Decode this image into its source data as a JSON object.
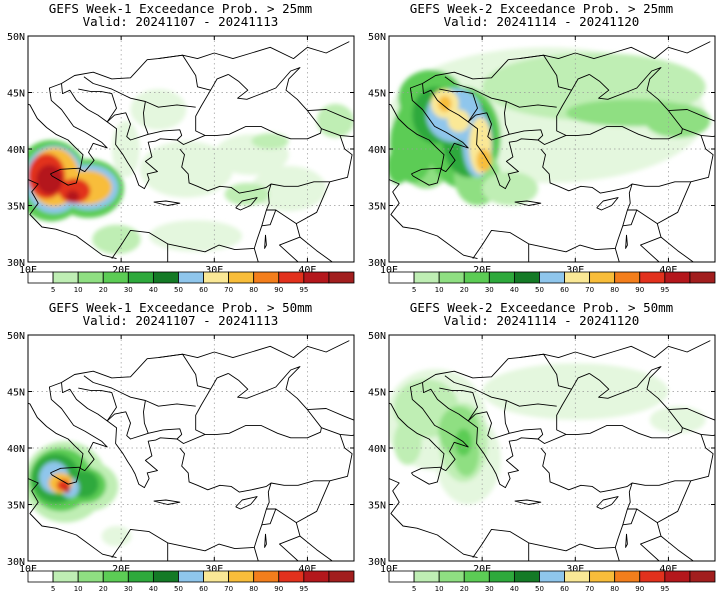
{
  "colors": {
    "land": "#ffffff",
    "coast": "#000000",
    "grid": "#9a9a9a",
    "levels": [
      "#ffffff",
      "#e4f7de",
      "#bfeeb4",
      "#8fdf82",
      "#5ccc55",
      "#2ea93c",
      "#147a26",
      "#8fc6ec",
      "#fae896",
      "#f8bd3a",
      "#f37e1c",
      "#e2311d",
      "#b4171c",
      "#a21e1e"
    ]
  },
  "colorbar": {
    "labels": [
      "5",
      "10",
      "20",
      "30",
      "40",
      "50",
      "60",
      "70",
      "80",
      "90",
      "95"
    ]
  },
  "axes": {
    "lon_labels": [
      "10E",
      "20E",
      "30E",
      "40E"
    ],
    "lat_labels": [
      "50N",
      "45N",
      "40N",
      "35N",
      "30N"
    ],
    "lon_range": [
      10,
      45
    ],
    "lat_range": [
      30,
      50
    ]
  },
  "panels": [
    {
      "id": "w1-25",
      "title_line1": "GEFS Week-1 Exceedance Prob. > 25mm",
      "title_line2": "Valid: 20241107 - 20241113",
      "blobs": [
        {
          "lon": 12.5,
          "lat": 37.2,
          "rx": 4.0,
          "ry": 3.6,
          "level": 4
        },
        {
          "lon": 16.5,
          "lat": 36.5,
          "rx": 3.8,
          "ry": 2.6,
          "level": 4
        },
        {
          "lon": 12.8,
          "lat": 37.3,
          "rx": 3.2,
          "ry": 3.0,
          "level": 7
        },
        {
          "lon": 16.5,
          "lat": 36.6,
          "rx": 3.2,
          "ry": 2.0,
          "level": 7
        },
        {
          "lon": 12.8,
          "lat": 37.5,
          "rx": 2.7,
          "ry": 2.6,
          "level": 9
        },
        {
          "lon": 16.3,
          "lat": 36.6,
          "rx": 2.7,
          "ry": 1.5,
          "level": 9
        },
        {
          "lon": 12.0,
          "lat": 37.6,
          "rx": 2.0,
          "ry": 2.0,
          "level": 11
        },
        {
          "lon": 15.0,
          "lat": 36.3,
          "rx": 1.7,
          "ry": 1.1,
          "level": 11
        },
        {
          "lon": 12.3,
          "lat": 37.3,
          "rx": 1.4,
          "ry": 1.3,
          "level": 12
        },
        {
          "lon": 14.8,
          "lat": 35.8,
          "rx": 0.7,
          "ry": 0.5,
          "level": 12
        },
        {
          "lon": 27.0,
          "lat": 38.2,
          "rx": 5.0,
          "ry": 2.5,
          "level": 1
        },
        {
          "lon": 34.0,
          "lat": 39.5,
          "rx": 4.0,
          "ry": 1.8,
          "level": 1
        },
        {
          "lon": 38.0,
          "lat": 36.5,
          "rx": 4.0,
          "ry": 2.0,
          "level": 1
        },
        {
          "lon": 24.0,
          "lat": 43.5,
          "rx": 3.0,
          "ry": 1.8,
          "level": 1
        },
        {
          "lon": 28.0,
          "lat": 32.3,
          "rx": 5.0,
          "ry": 1.4,
          "level": 1
        },
        {
          "lon": 19.5,
          "lat": 32.0,
          "rx": 2.6,
          "ry": 1.3,
          "level": 2
        },
        {
          "lon": 33.5,
          "lat": 36.0,
          "rx": 2.4,
          "ry": 1.0,
          "level": 2
        },
        {
          "lon": 36.0,
          "lat": 40.7,
          "rx": 2.0,
          "ry": 0.7,
          "level": 2
        },
        {
          "lon": 43.0,
          "lat": 42.5,
          "rx": 2.0,
          "ry": 1.5,
          "level": 2
        },
        {
          "lon": 20.5,
          "lat": 40.0,
          "rx": 1.5,
          "ry": 2.5,
          "level": 1
        }
      ]
    },
    {
      "id": "w2-25",
      "title_line1": "GEFS Week-2 Exceedance Prob. > 25mm",
      "title_line2": "Valid: 20241114 - 20241120",
      "blobs": [
        {
          "lon": 27.0,
          "lat": 43.0,
          "rx": 17.0,
          "ry": 6.0,
          "level": 1
        },
        {
          "lon": 32.0,
          "lat": 45.5,
          "rx": 12.0,
          "ry": 3.0,
          "level": 2
        },
        {
          "lon": 36.0,
          "lat": 43.2,
          "rx": 7.0,
          "ry": 1.2,
          "level": 3
        },
        {
          "lon": 41.0,
          "lat": 42.5,
          "rx": 3.5,
          "ry": 1.5,
          "level": 3
        },
        {
          "lon": 14.0,
          "lat": 41.0,
          "rx": 3.6,
          "ry": 4.5,
          "level": 3
        },
        {
          "lon": 12.5,
          "lat": 40.5,
          "rx": 2.4,
          "ry": 3.5,
          "level": 4
        },
        {
          "lon": 14.5,
          "lat": 44.5,
          "rx": 3.5,
          "ry": 2.5,
          "level": 4
        },
        {
          "lon": 18.0,
          "lat": 41.0,
          "rx": 4.0,
          "ry": 4.5,
          "level": 4
        },
        {
          "lon": 19.5,
          "lat": 37.5,
          "rx": 2.5,
          "ry": 2.5,
          "level": 3
        },
        {
          "lon": 15.0,
          "lat": 43.0,
          "rx": 2.5,
          "ry": 2.5,
          "level": 5
        },
        {
          "lon": 18.5,
          "lat": 41.0,
          "rx": 2.8,
          "ry": 3.5,
          "level": 5
        },
        {
          "lon": 17.0,
          "lat": 43.0,
          "rx": 3.0,
          "ry": 2.4,
          "level": 7
        },
        {
          "lon": 19.5,
          "lat": 40.5,
          "rx": 1.6,
          "ry": 3.0,
          "level": 7
        },
        {
          "lon": 16.0,
          "lat": 44.0,
          "rx": 1.5,
          "ry": 1.3,
          "level": 8
        },
        {
          "lon": 17.5,
          "lat": 42.5,
          "rx": 1.2,
          "ry": 1.0,
          "level": 8
        },
        {
          "lon": 19.8,
          "lat": 40.3,
          "rx": 1.2,
          "ry": 2.5,
          "level": 8
        },
        {
          "lon": 16.0,
          "lat": 44.0,
          "rx": 0.7,
          "ry": 0.7,
          "level": 9
        },
        {
          "lon": 20.2,
          "lat": 39.0,
          "rx": 0.8,
          "ry": 1.0,
          "level": 9
        },
        {
          "lon": 23.0,
          "lat": 36.5,
          "rx": 3.0,
          "ry": 1.5,
          "level": 2
        },
        {
          "lon": 11.0,
          "lat": 38.5,
          "rx": 1.2,
          "ry": 1.6,
          "level": 4
        }
      ]
    },
    {
      "id": "w1-50",
      "title_line1": "GEFS Week-1 Exceedance Prob. > 50mm",
      "title_line2": "Valid: 20241107 - 20241113",
      "blobs": [
        {
          "lon": 14.0,
          "lat": 37.0,
          "rx": 4.5,
          "ry": 3.6,
          "level": 2
        },
        {
          "lon": 16.5,
          "lat": 36.6,
          "rx": 3.2,
          "ry": 2.2,
          "level": 2
        },
        {
          "lon": 13.5,
          "lat": 37.2,
          "rx": 3.4,
          "ry": 2.8,
          "level": 4
        },
        {
          "lon": 16.0,
          "lat": 36.7,
          "rx": 2.4,
          "ry": 1.6,
          "level": 4
        },
        {
          "lon": 13.0,
          "lat": 37.3,
          "rx": 2.6,
          "ry": 2.2,
          "level": 5
        },
        {
          "lon": 16.0,
          "lat": 36.8,
          "rx": 1.6,
          "ry": 1.2,
          "level": 5
        },
        {
          "lon": 12.8,
          "lat": 37.4,
          "rx": 1.6,
          "ry": 1.4,
          "level": 7
        },
        {
          "lon": 14.5,
          "lat": 36.5,
          "rx": 1.0,
          "ry": 0.9,
          "level": 7
        },
        {
          "lon": 13.5,
          "lat": 36.9,
          "rx": 1.3,
          "ry": 0.9,
          "level": 9
        },
        {
          "lon": 13.8,
          "lat": 36.7,
          "rx": 0.7,
          "ry": 0.5,
          "level": 11
        },
        {
          "lon": 14.2,
          "lat": 36.3,
          "rx": 0.3,
          "ry": 0.3,
          "level": 12
        },
        {
          "lon": 19.5,
          "lat": 32.2,
          "rx": 1.6,
          "ry": 0.9,
          "level": 1
        }
      ]
    },
    {
      "id": "w2-50",
      "title_line1": "GEFS Week-2 Exceedance Prob. > 50mm",
      "title_line2": "Valid: 20241114 - 20241120",
      "blobs": [
        {
          "lon": 15.0,
          "lat": 42.5,
          "rx": 5.5,
          "ry": 4.5,
          "level": 1
        },
        {
          "lon": 18.5,
          "lat": 39.0,
          "rx": 3.5,
          "ry": 4.0,
          "level": 1
        },
        {
          "lon": 30.0,
          "lat": 45.0,
          "rx": 10.0,
          "ry": 2.5,
          "level": 1
        },
        {
          "lon": 41.0,
          "lat": 42.5,
          "rx": 3.0,
          "ry": 1.2,
          "level": 1
        },
        {
          "lon": 14.0,
          "lat": 43.5,
          "rx": 3.5,
          "ry": 2.6,
          "level": 2
        },
        {
          "lon": 18.0,
          "lat": 40.5,
          "rx": 2.6,
          "ry": 3.5,
          "level": 2
        },
        {
          "lon": 12.0,
          "lat": 40.5,
          "rx": 1.5,
          "ry": 2.0,
          "level": 2
        },
        {
          "lon": 17.5,
          "lat": 41.5,
          "rx": 2.2,
          "ry": 2.2,
          "level": 3
        },
        {
          "lon": 18.3,
          "lat": 39.5,
          "rx": 1.4,
          "ry": 2.0,
          "level": 3
        },
        {
          "lon": 18.0,
          "lat": 40.5,
          "rx": 0.9,
          "ry": 1.2,
          "level": 4
        }
      ]
    }
  ]
}
